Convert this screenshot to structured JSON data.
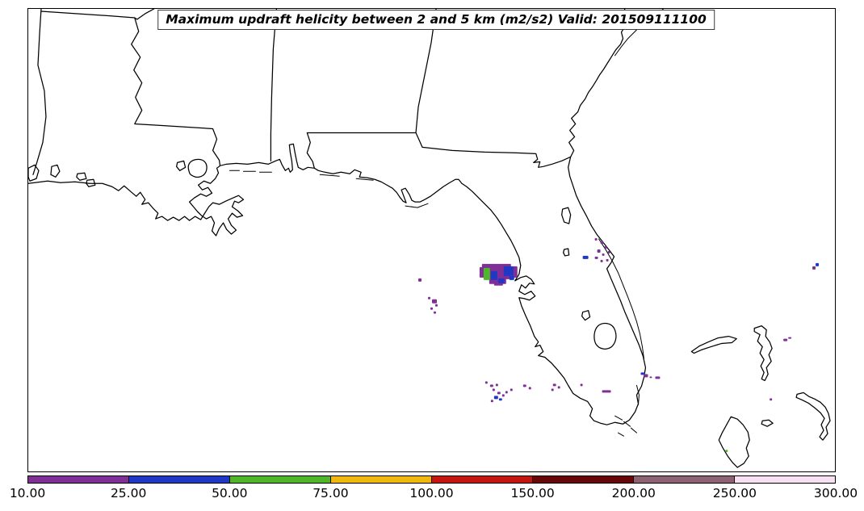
{
  "title": {
    "text": "Maximum updraft helicity between 2 and 5 km (m2/s2) Valid: 201509111100"
  },
  "colorbar": {
    "tick_labels": [
      "10.00",
      "25.00",
      "50.00",
      "75.00",
      "100.00",
      "150.00",
      "200.00",
      "250.00",
      "300.00"
    ],
    "values": [
      10,
      25,
      50,
      75,
      100,
      150,
      200,
      250,
      300
    ],
    "colors": [
      "#7F2F96",
      "#2038C4",
      "#4FB629",
      "#EFB70F",
      "#C4150F",
      "#670707",
      "#8D6273",
      "#F6E0F2"
    ],
    "spacing": "uniform"
  },
  "speck_colors": {
    "P": "#7F2F96",
    "B": "#2038C4",
    "G": "#4FB629"
  },
  "map": {
    "specks": [
      [
        597,
        327,
        36,
        10,
        "P"
      ],
      [
        601,
        335,
        31,
        11,
        "P"
      ],
      [
        606,
        344,
        21,
        8,
        "P"
      ],
      [
        612,
        350,
        11,
        4,
        "P"
      ],
      [
        594,
        331,
        8,
        13,
        "P"
      ],
      [
        634,
        330,
        7,
        14,
        "P"
      ],
      [
        608,
        336,
        8,
        11,
        "B"
      ],
      [
        624,
        330,
        12,
        12,
        "B"
      ],
      [
        617,
        345,
        8,
        6,
        "B"
      ],
      [
        631,
        342,
        6,
        5,
        "B"
      ],
      [
        599,
        332,
        8,
        15,
        "G"
      ],
      [
        737,
        295,
        3,
        3,
        "P"
      ],
      [
        744,
        299,
        4,
        3,
        "P"
      ],
      [
        749,
        305,
        3,
        3,
        "P"
      ],
      [
        740,
        309,
        4,
        4,
        "P"
      ],
      [
        746,
        314,
        3,
        3,
        "P"
      ],
      [
        753,
        311,
        3,
        3,
        "P"
      ],
      [
        737,
        318,
        4,
        3,
        "P"
      ],
      [
        744,
        322,
        3,
        3,
        "P"
      ],
      [
        751,
        321,
        3,
        3,
        "P"
      ],
      [
        722,
        317,
        7,
        4,
        "B"
      ],
      [
        518,
        345,
        4,
        4,
        "P"
      ],
      [
        530,
        368,
        3,
        3,
        "P"
      ],
      [
        535,
        371,
        6,
        5,
        "P"
      ],
      [
        539,
        377,
        3,
        3,
        "P"
      ],
      [
        533,
        381,
        3,
        3,
        "P"
      ],
      [
        537,
        386,
        3,
        3,
        "P"
      ],
      [
        601,
        473,
        3,
        3,
        "P"
      ],
      [
        607,
        477,
        4,
        3,
        "P"
      ],
      [
        614,
        476,
        3,
        3,
        "P"
      ],
      [
        610,
        482,
        3,
        3,
        "P"
      ],
      [
        616,
        486,
        4,
        3,
        "P"
      ],
      [
        622,
        489,
        3,
        3,
        "P"
      ],
      [
        612,
        491,
        5,
        4,
        "B"
      ],
      [
        618,
        494,
        4,
        3,
        "B"
      ],
      [
        608,
        496,
        3,
        3,
        "P"
      ],
      [
        626,
        485,
        3,
        3,
        "P"
      ],
      [
        632,
        482,
        3,
        3,
        "P"
      ],
      [
        648,
        477,
        4,
        3,
        "P"
      ],
      [
        655,
        480,
        3,
        3,
        "P"
      ],
      [
        685,
        476,
        4,
        3,
        "P"
      ],
      [
        691,
        479,
        3,
        3,
        "P"
      ],
      [
        683,
        482,
        3,
        3,
        "P"
      ],
      [
        719,
        476,
        3,
        3,
        "P"
      ],
      [
        746,
        484,
        11,
        3,
        "P"
      ],
      [
        794,
        462,
        5,
        3,
        "B"
      ],
      [
        798,
        464,
        5,
        4,
        "P"
      ],
      [
        805,
        467,
        3,
        2,
        "P"
      ],
      [
        812,
        467,
        6,
        3,
        "P"
      ],
      [
        971,
        420,
        5,
        3,
        "P"
      ],
      [
        977,
        418,
        4,
        2,
        "P"
      ],
      [
        954,
        494,
        3,
        3,
        "P"
      ],
      [
        1007,
        330,
        4,
        4,
        "P"
      ],
      [
        1011,
        326,
        4,
        4,
        "B"
      ],
      [
        899,
        558,
        3,
        3,
        "G"
      ]
    ]
  }
}
